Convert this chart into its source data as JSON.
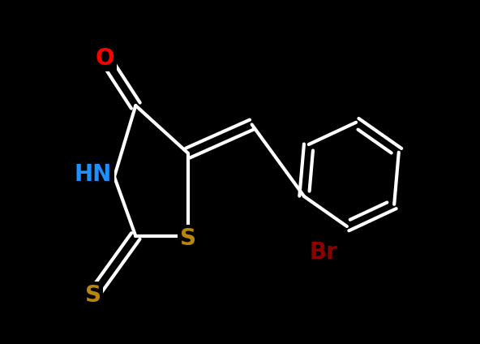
{
  "background_color": "#000000",
  "atom_colors": {
    "O": "#ff0000",
    "N": "#1e90ff",
    "S": "#b8860b",
    "Br": "#8b0000",
    "C": "#000000",
    "line": "#ffffff"
  },
  "line_color": "#ffffff",
  "line_width": 3.0,
  "font_size_atom": 20
}
